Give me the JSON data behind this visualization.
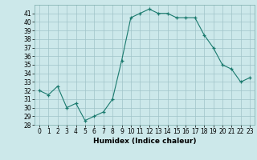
{
  "x": [
    0,
    1,
    2,
    3,
    4,
    5,
    6,
    7,
    8,
    9,
    10,
    11,
    12,
    13,
    14,
    15,
    16,
    17,
    18,
    19,
    20,
    21,
    22,
    23
  ],
  "y": [
    32,
    31.5,
    32.5,
    30,
    30.5,
    28.5,
    29,
    29.5,
    31,
    35.5,
    40.5,
    41,
    41.5,
    41,
    41,
    40.5,
    40.5,
    40.5,
    38.5,
    37,
    35,
    34.5,
    33,
    33.5
  ],
  "line_color": "#1a7a6e",
  "marker_color": "#1a7a6e",
  "bg_color": "#cce8ea",
  "grid_color": "#a0c4c8",
  "xlabel": "Humidex (Indice chaleur)",
  "xlim": [
    -0.5,
    23.5
  ],
  "ylim": [
    28,
    42
  ],
  "yticks": [
    28,
    29,
    30,
    31,
    32,
    33,
    34,
    35,
    36,
    37,
    38,
    39,
    40,
    41
  ],
  "xticks": [
    0,
    1,
    2,
    3,
    4,
    5,
    6,
    7,
    8,
    9,
    10,
    11,
    12,
    13,
    14,
    15,
    16,
    17,
    18,
    19,
    20,
    21,
    22,
    23
  ],
  "tick_fontsize": 5.5,
  "label_fontsize": 6.5
}
